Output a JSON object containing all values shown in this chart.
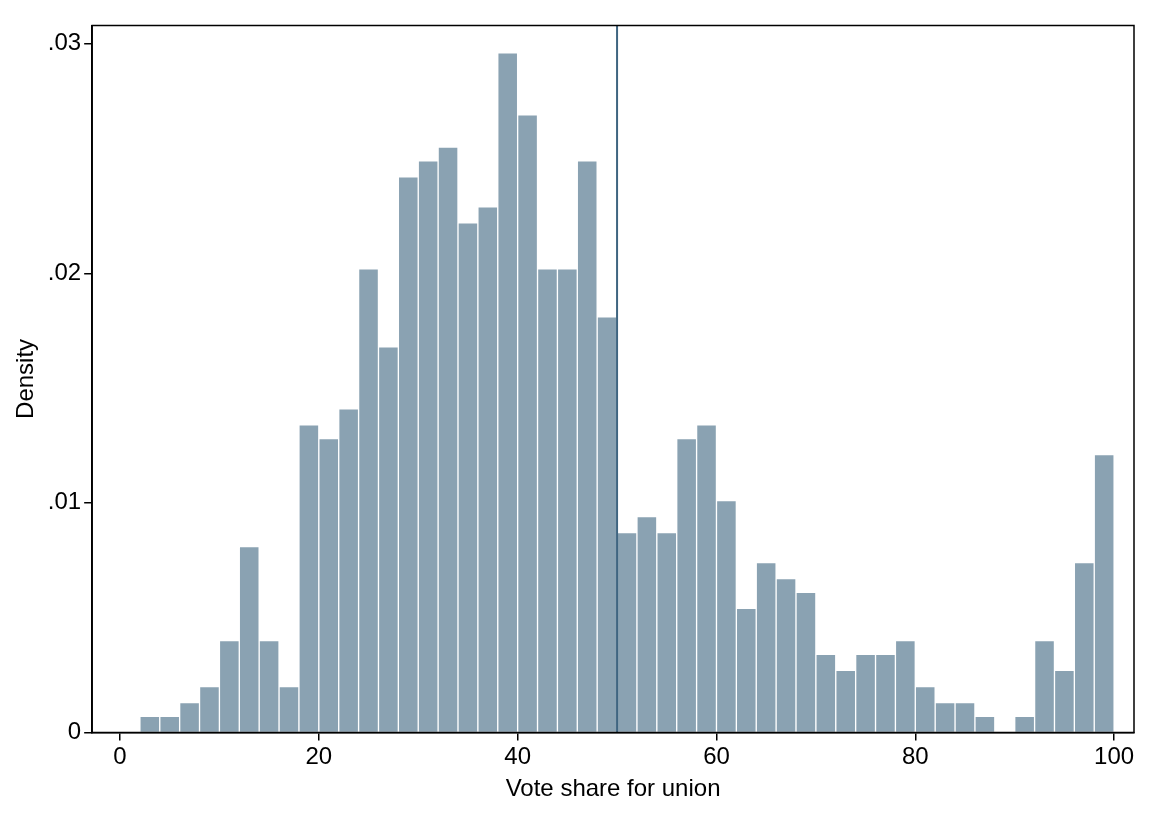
{
  "chart_data": {
    "type": "histogram",
    "xlabel": "Vote share for union",
    "ylabel": "Density",
    "bins": [
      2,
      4,
      6,
      8,
      10,
      12,
      14,
      16,
      18,
      20,
      22,
      24,
      26,
      28,
      30,
      32,
      34,
      36,
      38,
      40,
      42,
      44,
      46,
      48,
      50,
      52,
      54,
      56,
      58,
      60,
      62,
      64,
      66,
      68,
      70,
      72,
      74,
      76,
      78,
      80,
      82,
      84,
      86,
      88,
      90,
      92,
      94,
      96,
      98,
      100
    ],
    "values": [
      0.0007,
      0.0007,
      0.0013,
      0.002,
      0.004,
      0.0081,
      0.004,
      0.002,
      0.0134,
      0.0128,
      0.0141,
      0.0202,
      0.0168,
      0.0242,
      0.0249,
      0.0255,
      0.0222,
      0.0229,
      0.0296,
      0.0269,
      0.0202,
      0.0202,
      0.0249,
      0.0181,
      0.0087,
      0.0094,
      0.0087,
      0.0128,
      0.0134,
      0.0101,
      0.0054,
      0.0074,
      0.0067,
      0.0061,
      0.0034,
      0.0027,
      0.0034,
      0.0034,
      0.004,
      0.002,
      0.0013,
      0.0013,
      0.0007,
      0,
      0.0007,
      0.004,
      0.0027,
      0.0074,
      0.0121
    ],
    "color": "#8aa2b2",
    "xlim": [
      -2.8,
      102
    ],
    "xticks": [
      0,
      20,
      40,
      60,
      80,
      100
    ],
    "ylim": [
      0,
      0.0308
    ],
    "yticks": [
      {
        "value": 0,
        "label": "0"
      },
      {
        "value": 0.01,
        "label": ".01"
      },
      {
        "value": 0.02,
        "label": ".02"
      },
      {
        "value": 0.03,
        "label": ".03"
      }
    ],
    "ref_lines": [
      {
        "axis": "x",
        "value": 50,
        "color": "#3f6580"
      }
    ],
    "grid": false,
    "legend": false
  }
}
